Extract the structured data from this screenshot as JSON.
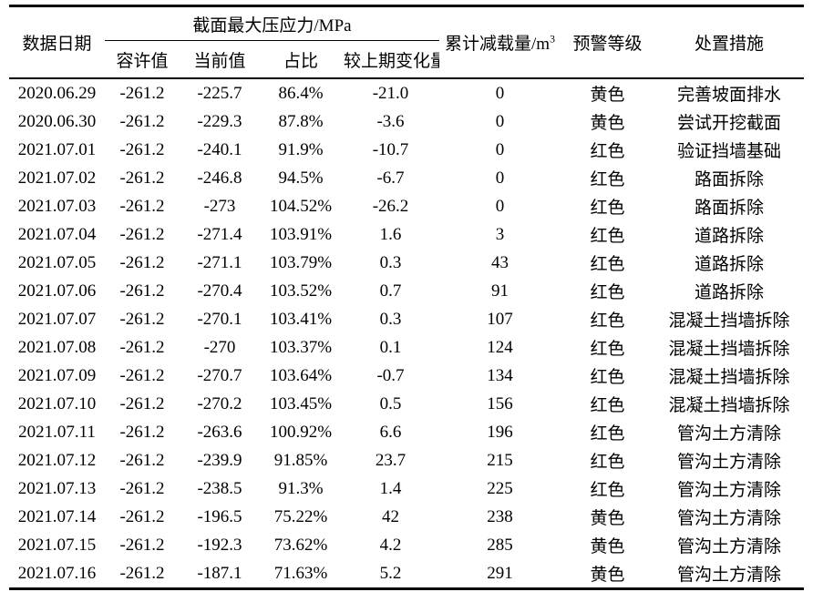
{
  "table": {
    "header": {
      "date": "数据日期",
      "stress_group": "截面最大压应力/MPa",
      "sub": [
        "容许值",
        "当前值",
        "占比",
        "较上期变化量"
      ],
      "unload_main": "累计减载量/m",
      "unload_sup": "3",
      "warning": "预警等级",
      "measure": "处置措施"
    },
    "rows": [
      [
        "2020.06.29",
        "-261.2",
        "-225.7",
        "86.4%",
        "-21.0",
        "0",
        "黄色",
        "完善坡面排水"
      ],
      [
        "2020.06.30",
        "-261.2",
        "-229.3",
        "87.8%",
        "-3.6",
        "0",
        "黄色",
        "尝试开挖截面"
      ],
      [
        "2021.07.01",
        "-261.2",
        "-240.1",
        "91.9%",
        "-10.7",
        "0",
        "红色",
        "验证挡墙基础"
      ],
      [
        "2021.07.02",
        "-261.2",
        "-246.8",
        "94.5%",
        "-6.7",
        "0",
        "红色",
        "路面拆除"
      ],
      [
        "2021.07.03",
        "-261.2",
        "-273",
        "104.52%",
        "-26.2",
        "0",
        "红色",
        "路面拆除"
      ],
      [
        "2021.07.04",
        "-261.2",
        "-271.4",
        "103.91%",
        "1.6",
        "3",
        "红色",
        "道路拆除"
      ],
      [
        "2021.07.05",
        "-261.2",
        "-271.1",
        "103.79%",
        "0.3",
        "43",
        "红色",
        "道路拆除"
      ],
      [
        "2021.07.06",
        "-261.2",
        "-270.4",
        "103.52%",
        "0.7",
        "91",
        "红色",
        "道路拆除"
      ],
      [
        "2021.07.07",
        "-261.2",
        "-270.1",
        "103.41%",
        "0.3",
        "107",
        "红色",
        "混凝土挡墙拆除"
      ],
      [
        "2021.07.08",
        "-261.2",
        "-270",
        "103.37%",
        "0.1",
        "124",
        "红色",
        "混凝土挡墙拆除"
      ],
      [
        "2021.07.09",
        "-261.2",
        "-270.7",
        "103.64%",
        "-0.7",
        "134",
        "红色",
        "混凝土挡墙拆除"
      ],
      [
        "2021.07.10",
        "-261.2",
        "-270.2",
        "103.45%",
        "0.5",
        "156",
        "红色",
        "混凝土挡墙拆除"
      ],
      [
        "2021.07.11",
        "-261.2",
        "-263.6",
        "100.92%",
        "6.6",
        "196",
        "红色",
        "管沟土方清除"
      ],
      [
        "2021.07.12",
        "-261.2",
        "-239.9",
        "91.85%",
        "23.7",
        "215",
        "红色",
        "管沟土方清除"
      ],
      [
        "2021.07.13",
        "-261.2",
        "-238.5",
        "91.3%",
        "1.4",
        "225",
        "红色",
        "管沟土方清除"
      ],
      [
        "2021.07.14",
        "-261.2",
        "-196.5",
        "75.22%",
        "42",
        "238",
        "黄色",
        "管沟土方清除"
      ],
      [
        "2021.07.15",
        "-261.2",
        "-192.3",
        "73.62%",
        "4.2",
        "285",
        "黄色",
        "管沟土方清除"
      ],
      [
        "2021.07.16",
        "-261.2",
        "-187.1",
        "71.63%",
        "5.2",
        "291",
        "黄色",
        "管沟土方清除"
      ]
    ]
  }
}
